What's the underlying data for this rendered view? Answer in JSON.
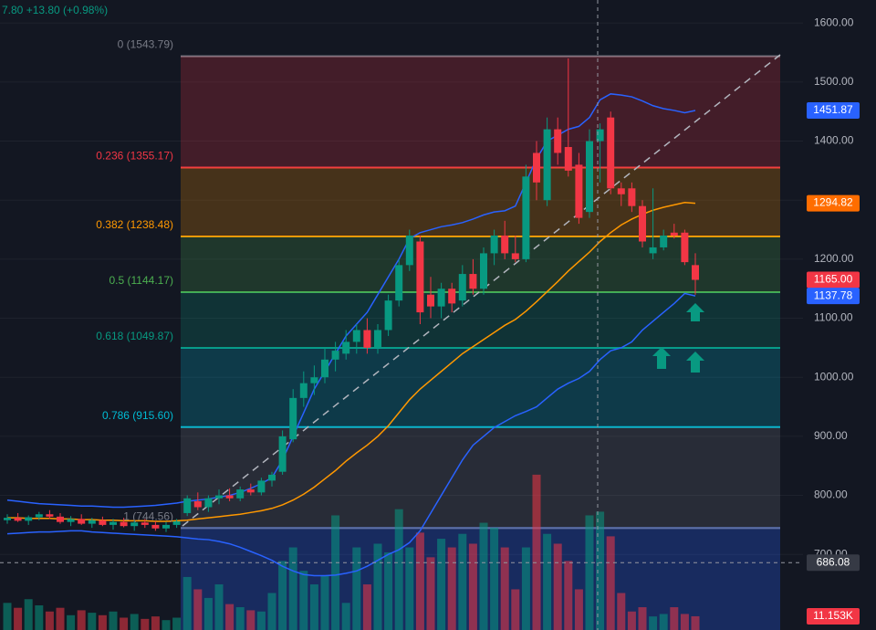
{
  "chart_data": {
    "type": "candlestick",
    "header": "7.80 +13.80 (+0.98%)",
    "ylim": [
      572,
      1639
    ],
    "yticks": [
      {
        "value": 700,
        "label": "700.00"
      },
      {
        "value": 800,
        "label": "800.00"
      },
      {
        "value": 900,
        "label": "900.00"
      },
      {
        "value": 1000,
        "label": "1000.00"
      },
      {
        "value": 1100,
        "label": "1100.00"
      },
      {
        "value": 1200,
        "label": "1200.00"
      },
      {
        "value": 1300,
        "label": "1300.00"
      },
      {
        "value": 1400,
        "label": "1400.00"
      },
      {
        "value": 1500,
        "label": "1500.00"
      },
      {
        "value": 1600,
        "label": "1600.00"
      }
    ],
    "grid": true,
    "up_color": "#089981",
    "down_color": "#f23645",
    "open": [
      758,
      762,
      757,
      763,
      768,
      764,
      755,
      760,
      752,
      758,
      750,
      755,
      748,
      754,
      750,
      744,
      750,
      770,
      790,
      780,
      795,
      800,
      795,
      810,
      805,
      825,
      840,
      895,
      965,
      990,
      1000,
      1030,
      1040,
      1060,
      1080,
      1050,
      1080,
      1130,
      1190,
      1230,
      1140,
      1120,
      1150,
      1130,
      1175,
      1150,
      1210,
      1240,
      1210,
      1200,
      1380,
      1300,
      1420,
      1390,
      1360,
      1280,
      1400,
      1440,
      1320,
      1320,
      1290,
      1210,
      1220,
      1245,
      1245,
      1190
    ],
    "high": [
      768,
      770,
      766,
      772,
      775,
      770,
      765,
      768,
      762,
      764,
      760,
      762,
      758,
      760,
      756,
      755,
      760,
      800,
      805,
      800,
      810,
      812,
      815,
      820,
      830,
      840,
      910,
      980,
      1010,
      1020,
      1050,
      1060,
      1080,
      1090,
      1100,
      1090,
      1140,
      1200,
      1250,
      1240,
      1170,
      1160,
      1160,
      1190,
      1200,
      1220,
      1250,
      1265,
      1240,
      1360,
      1400,
      1440,
      1440,
      1540,
      1380,
      1420,
      1430,
      1450,
      1330,
      1330,
      1300,
      1320,
      1250,
      1260,
      1250,
      1210
    ],
    "low": [
      752,
      755,
      750,
      758,
      760,
      752,
      748,
      750,
      745,
      748,
      742,
      746,
      740,
      745,
      740,
      738,
      745,
      765,
      775,
      772,
      785,
      790,
      790,
      800,
      800,
      815,
      835,
      890,
      950,
      970,
      990,
      1010,
      1030,
      1040,
      1040,
      1040,
      1070,
      1120,
      1180,
      1090,
      1100,
      1100,
      1110,
      1120,
      1140,
      1140,
      1190,
      1200,
      1195,
      1195,
      1300,
      1290,
      1360,
      1340,
      1260,
      1270,
      1330,
      1310,
      1290,
      1280,
      1220,
      1200,
      1215,
      1235,
      1190,
      1140
    ],
    "close": [
      762,
      757,
      763,
      768,
      764,
      755,
      760,
      752,
      758,
      750,
      755,
      748,
      754,
      750,
      744,
      750,
      756,
      795,
      780,
      795,
      800,
      795,
      810,
      805,
      825,
      835,
      900,
      965,
      990,
      1000,
      1030,
      1045,
      1060,
      1080,
      1050,
      1080,
      1130,
      1190,
      1240,
      1110,
      1120,
      1150,
      1125,
      1175,
      1150,
      1210,
      1240,
      1210,
      1200,
      1340,
      1330,
      1420,
      1380,
      1350,
      1270,
      1400,
      1420,
      1320,
      1310,
      1290,
      1230,
      1220,
      1240,
      1240,
      1195,
      1165
    ],
    "volumes": [
      22000,
      18000,
      25000,
      20000,
      15000,
      18000,
      12000,
      16000,
      14000,
      12000,
      15000,
      10000,
      13000,
      9000,
      11000,
      8000,
      10000,
      43000,
      33000,
      26000,
      37000,
      21000,
      18500,
      16000,
      15000,
      30000,
      56000,
      67000,
      48000,
      37000,
      44000,
      93000,
      22000,
      67000,
      37000,
      70000,
      63000,
      98000,
      67000,
      79000,
      59000,
      74000,
      67000,
      78000,
      70000,
      87000,
      83000,
      67000,
      33000,
      67000,
      126000,
      78000,
      70000,
      56000,
      33000,
      93000,
      96000,
      76000,
      30000,
      15000,
      18500,
      11000,
      13000,
      18500,
      13000,
      11153
    ],
    "vlim": [
      0,
      200000
    ],
    "series": [
      {
        "color": "#2962ff",
        "values": [
          792,
          790,
          788,
          786,
          785,
          784,
          783,
          782,
          782,
          781,
          780,
          780,
          781,
          782,
          783,
          785,
          787,
          790,
          792,
          794,
          797,
          800,
          805,
          812,
          820,
          830,
          860,
          900,
          940,
          980,
          1010,
          1040,
          1070,
          1090,
          1110,
          1140,
          1170,
          1200,
          1235,
          1245,
          1250,
          1255,
          1258,
          1262,
          1268,
          1275,
          1280,
          1282,
          1290,
          1330,
          1370,
          1400,
          1410,
          1420,
          1425,
          1440,
          1470,
          1480,
          1478,
          1475,
          1468,
          1460,
          1455,
          1452,
          1448,
          1451.87
        ]
      },
      {
        "color": "#ff9800",
        "values": [
          762,
          762,
          761,
          761,
          761,
          760,
          760,
          759,
          759,
          758,
          758,
          757,
          757,
          757,
          756,
          756,
          757,
          758,
          760,
          762,
          764,
          766,
          768,
          771,
          774,
          778,
          784,
          792,
          802,
          814,
          828,
          842,
          858,
          872,
          885,
          900,
          918,
          940,
          962,
          980,
          995,
          1010,
          1025,
          1040,
          1052,
          1064,
          1076,
          1088,
          1098,
          1112,
          1128,
          1145,
          1162,
          1180,
          1196,
          1212,
          1230,
          1245,
          1258,
          1268,
          1276,
          1283,
          1288,
          1292,
          1296,
          1294.82
        ]
      },
      {
        "color": "#2962ff",
        "values": [
          735,
          736,
          737,
          738,
          738,
          739,
          740,
          740,
          738,
          737,
          736,
          735,
          734,
          733,
          732,
          731,
          730,
          728,
          726,
          725,
          722,
          718,
          712,
          705,
          698,
          690,
          680,
          672,
          666,
          664,
          664,
          665,
          668,
          672,
          680,
          690,
          700,
          708,
          720,
          740,
          770,
          800,
          830,
          860,
          885,
          900,
          915,
          925,
          935,
          942,
          950,
          965,
          980,
          990,
          998,
          1010,
          1030,
          1045,
          1050,
          1060,
          1080,
          1095,
          1110,
          1125,
          1142,
          1137.78
        ]
      }
    ],
    "fib_levels": [
      {
        "label": "0 (1543.79)",
        "price": 1543.79,
        "color": "#787b86"
      },
      {
        "label": "0.236 (1355.17)",
        "price": 1355.17,
        "color": "#f23645"
      },
      {
        "label": "0.382 (1238.48)",
        "price": 1238.48,
        "color": "#ff9800"
      },
      {
        "label": "0.5 (1144.17)",
        "price": 1144.17,
        "color": "#4caf50"
      },
      {
        "label": "0.618 (1049.87)",
        "price": 1049.87,
        "color": "#089981"
      },
      {
        "label": "0.786 (915.60)",
        "price": 915.6,
        "color": "#00bcd4"
      },
      {
        "label": "1 (744.56)",
        "price": 744.56,
        "color": "#787b86"
      }
    ],
    "price_tags": [
      {
        "value": 1451.87,
        "label": "1451.87",
        "color": "#2962ff"
      },
      {
        "value": 1294.82,
        "label": "1294.82",
        "color": "#ff6d00"
      },
      {
        "value": 1165,
        "label": "1165.00",
        "color": "#f23645"
      },
      {
        "value": 1137.78,
        "label": "1137.78",
        "color": "#2962ff"
      },
      {
        "value": 686.08,
        "label": "686.08",
        "color": "#363a45"
      }
    ],
    "volume_tag": {
      "value": 11153,
      "label": "11.153K",
      "color": "#f23645"
    }
  }
}
